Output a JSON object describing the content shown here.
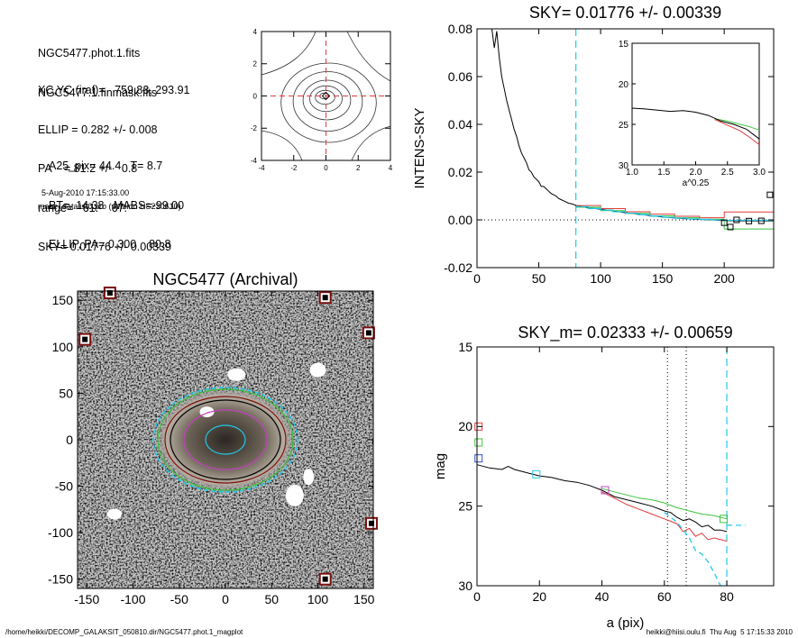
{
  "info": {
    "file_lines": [
      "NGC5477.phot.1.fits",
      "NGC5477.1.finmask.fits"
    ],
    "params": [
      "XC,YC (iraf)=   759.83, 293.91",
      "ELLIP = 0.282 +/- 0.008",
      "PA    = 81.2 +/-   0.8",
      "range=   61.-   67.",
      "SKY= 0.01776 +/- 0.00339"
    ],
    "morph": [
      "A25_pix= 44.4   T= 8.7",
      "BT=  14.38   MABS=-99.00",
      "ELLIP, PA= 0.300    80.8"
    ],
    "date": "5-Aug-2010 17:15:33.00",
    "program": "make_datalist0.pro (version HS230610)"
  },
  "footer": {
    "left": "/home/heikki/DECOMP_GALAKSIT_050810.dir/NGC5477.phot.1_magplot",
    "right": "heikki@hiisi.oulu.fi  Thu Aug  5 17:15:33 2010"
  },
  "colors": {
    "cyan": "#22c8e8",
    "red": "#e03a3a",
    "green": "#3cc43c",
    "magenta": "#c040c0",
    "blue": "#3050d0",
    "dark_red": "#7a0f0f"
  },
  "chart_data": [
    {
      "type": "contour",
      "title": "",
      "xticks": [
        "-4",
        "-2",
        "0",
        "2",
        "4"
      ],
      "yticks": [
        "-4",
        "-2",
        "0",
        "2",
        "4"
      ],
      "xlim": [
        -4,
        4
      ],
      "ylim": [
        -4,
        4
      ],
      "center_marker": [
        0,
        0
      ]
    },
    {
      "type": "line",
      "title": "SKY= 0.01776 +/- 0.00339",
      "xlabel": "",
      "ylabel": "INTENS-SKY",
      "xlim": [
        0,
        240
      ],
      "ylim": [
        -0.02,
        0.08
      ],
      "xticks": [
        "0",
        "50",
        "100",
        "150",
        "200"
      ],
      "yticks": [
        "-0.02",
        "0.00",
        "0.02",
        "0.04",
        "0.06",
        "0.08"
      ],
      "vline_x": 80,
      "profile": [
        [
          12,
          0.08
        ],
        [
          14,
          0.072
        ],
        [
          16,
          0.079
        ],
        [
          18,
          0.068
        ],
        [
          20,
          0.06
        ],
        [
          22,
          0.055
        ],
        [
          24,
          0.05
        ],
        [
          26,
          0.046
        ],
        [
          28,
          0.042
        ],
        [
          30,
          0.038
        ],
        [
          32,
          0.035
        ],
        [
          34,
          0.031
        ],
        [
          36,
          0.028
        ],
        [
          38,
          0.026
        ],
        [
          40,
          0.024
        ],
        [
          42,
          0.021
        ],
        [
          44,
          0.02
        ],
        [
          46,
          0.018
        ],
        [
          48,
          0.017
        ],
        [
          50,
          0.016
        ],
        [
          52,
          0.014
        ],
        [
          54,
          0.014
        ],
        [
          56,
          0.013
        ],
        [
          58,
          0.012
        ],
        [
          60,
          0.011
        ],
        [
          62,
          0.0105
        ],
        [
          64,
          0.01
        ],
        [
          66,
          0.009
        ],
        [
          68,
          0.0085
        ],
        [
          70,
          0.008
        ],
        [
          72,
          0.0075
        ],
        [
          74,
          0.007
        ],
        [
          76,
          0.0068
        ],
        [
          78,
          0.0065
        ],
        [
          80,
          0.006
        ],
        [
          85,
          0.0055
        ],
        [
          90,
          0.005
        ],
        [
          100,
          0.0045
        ],
        [
          110,
          0.0038
        ],
        [
          120,
          0.003
        ],
        [
          130,
          0.0025
        ],
        [
          140,
          0.0018
        ],
        [
          150,
          0.0012
        ],
        [
          160,
          0.0008
        ],
        [
          170,
          0.0004
        ],
        [
          180,
          0.0002
        ],
        [
          190,
          0.0
        ],
        [
          200,
          -0.0003
        ],
        [
          210,
          -0.0004
        ],
        [
          220,
          -0.0004
        ],
        [
          230,
          -0.0004
        ],
        [
          240,
          -0.0004
        ]
      ],
      "steps_cyan": [
        [
          80,
          0.0055
        ],
        [
          90,
          0.0048
        ],
        [
          100,
          0.0041
        ],
        [
          110,
          0.0034
        ],
        [
          120,
          0.0028
        ],
        [
          130,
          0.0022
        ],
        [
          140,
          0.0016
        ],
        [
          150,
          0.0011
        ],
        [
          160,
          0.0007
        ],
        [
          170,
          0.0004
        ],
        [
          180,
          0.0002
        ],
        [
          190,
          0.0
        ],
        [
          200,
          -0.0002
        ],
        [
          240,
          -0.0002
        ]
      ],
      "steps_red": [
        [
          80,
          0.006
        ],
        [
          100,
          0.0047
        ],
        [
          120,
          0.0034
        ],
        [
          140,
          0.0024
        ],
        [
          160,
          0.0015
        ],
        [
          180,
          0.0009
        ],
        [
          200,
          0.0033
        ],
        [
          240,
          0.0033
        ]
      ],
      "steps_green": [
        [
          80,
          0.0053
        ],
        [
          100,
          0.0039
        ],
        [
          120,
          0.0027
        ],
        [
          140,
          0.0017
        ],
        [
          160,
          0.0009
        ],
        [
          180,
          0.0003
        ],
        [
          200,
          -0.0038
        ],
        [
          240,
          -0.0038
        ]
      ],
      "squares": [
        [
          200,
          -0.0012
        ],
        [
          205,
          -0.003
        ],
        [
          210,
          0.0
        ],
        [
          220,
          -0.0005
        ],
        [
          230,
          -0.0004
        ],
        [
          237,
          0.0105
        ]
      ],
      "inset": {
        "xlabel": "a^0.25",
        "xlim": [
          1.0,
          3.0
        ],
        "ylim": [
          30,
          15
        ],
        "xticks": [
          "1.0",
          "1.5",
          "2.0",
          "2.5",
          "3.0"
        ],
        "yticks": [
          "15",
          "20",
          "25",
          "30"
        ],
        "black": [
          [
            1.0,
            23.0
          ],
          [
            1.2,
            23.1
          ],
          [
            1.4,
            23.25
          ],
          [
            1.6,
            23.4
          ],
          [
            1.8,
            23.3
          ],
          [
            2.0,
            23.5
          ],
          [
            2.2,
            23.9
          ],
          [
            2.4,
            24.6
          ],
          [
            2.6,
            25.0
          ],
          [
            2.8,
            25.6
          ],
          [
            2.9,
            26.2
          ],
          [
            3.0,
            26.8
          ]
        ],
        "green": [
          [
            2.3,
            24.3
          ],
          [
            2.5,
            24.6
          ],
          [
            2.7,
            25.0
          ],
          [
            2.85,
            25.3
          ],
          [
            3.0,
            25.7
          ]
        ],
        "red": [
          [
            2.3,
            24.4
          ],
          [
            2.5,
            25.1
          ],
          [
            2.7,
            25.8
          ],
          [
            2.85,
            26.6
          ],
          [
            3.0,
            27.5
          ]
        ]
      }
    },
    {
      "type": "image",
      "title": "NGC5477 (Archival)",
      "xlim": [
        -160,
        160
      ],
      "ylim": [
        -160,
        160
      ],
      "xticks": [
        "-150",
        "-100",
        "-50",
        "0",
        "50",
        "100",
        "150"
      ],
      "yticks": [
        "-150",
        "-100",
        "-50",
        "0",
        "50",
        "100",
        "150"
      ],
      "ellipses": [
        {
          "rx": 22,
          "ry": 16,
          "color": "cyan"
        },
        {
          "rx": 46,
          "ry": 33,
          "color": "magenta"
        },
        {
          "rx": 61,
          "ry": 44,
          "color": "black"
        },
        {
          "rx": 67,
          "ry": 48,
          "color": "dark_red"
        },
        {
          "rx": 80,
          "ry": 58,
          "color": "cyan"
        },
        {
          "rx": 75,
          "ry": 56,
          "color": "green"
        }
      ],
      "star_markers": [
        [
          -125,
          158
        ],
        [
          108,
          153
        ],
        [
          -152,
          108
        ],
        [
          155,
          115
        ],
        [
          158,
          -90
        ],
        [
          108,
          -150
        ]
      ]
    },
    {
      "type": "line",
      "title": "SKY_m=  0.02333 +/- 0.00659",
      "xlabel": "a (pix)",
      "ylabel": "mag",
      "xlim": [
        0,
        95
      ],
      "ylim": [
        30,
        15
      ],
      "xticks": [
        "0",
        "20",
        "40",
        "60",
        "80"
      ],
      "yticks": [
        "15",
        "20",
        "25",
        "30"
      ],
      "vlines_dotted": [
        61,
        67
      ],
      "vline_dashed": 80,
      "black": [
        [
          0,
          22.4
        ],
        [
          4,
          22.6
        ],
        [
          8,
          22.7
        ],
        [
          10,
          22.5
        ],
        [
          12,
          22.7
        ],
        [
          16,
          22.9
        ],
        [
          20,
          23.1
        ],
        [
          24,
          23.2
        ],
        [
          28,
          23.4
        ],
        [
          32,
          23.5
        ],
        [
          36,
          23.7
        ],
        [
          40,
          24.0
        ],
        [
          44,
          24.4
        ],
        [
          48,
          24.6
        ],
        [
          52,
          24.8
        ],
        [
          56,
          25.0
        ],
        [
          60,
          25.3
        ],
        [
          62,
          25.4
        ],
        [
          64,
          25.7
        ],
        [
          66,
          25.9
        ],
        [
          68,
          25.8
        ],
        [
          70,
          26.0
        ],
        [
          72,
          26.3
        ],
        [
          74,
          26.2
        ],
        [
          76,
          26.5
        ],
        [
          78,
          26.5
        ],
        [
          80,
          26.6
        ]
      ],
      "green": [
        [
          40,
          23.9
        ],
        [
          44,
          24.1
        ],
        [
          48,
          24.3
        ],
        [
          52,
          24.5
        ],
        [
          56,
          24.6
        ],
        [
          60,
          24.8
        ],
        [
          64,
          25.1
        ],
        [
          68,
          25.3
        ],
        [
          72,
          25.5
        ],
        [
          76,
          25.6
        ],
        [
          80,
          25.8
        ]
      ],
      "red": [
        [
          40,
          24.1
        ],
        [
          44,
          24.5
        ],
        [
          48,
          24.9
        ],
        [
          52,
          25.2
        ],
        [
          56,
          25.5
        ],
        [
          60,
          25.8
        ],
        [
          64,
          26.1
        ],
        [
          66,
          26.6
        ],
        [
          68,
          26.4
        ],
        [
          70,
          26.9
        ],
        [
          72,
          26.7
        ],
        [
          74,
          27.1
        ],
        [
          76,
          27.0
        ],
        [
          80,
          27.2
        ]
      ],
      "cyan_dashed": [
        [
          60,
          25.4
        ],
        [
          64,
          26.0
        ],
        [
          68,
          27.0
        ],
        [
          70,
          27.8
        ],
        [
          72,
          28.0
        ],
        [
          74,
          28.5
        ],
        [
          76,
          29.2
        ],
        [
          78,
          30.0
        ]
      ],
      "cyan_dashed_flat": [
        [
          80,
          26.2
        ],
        [
          86,
          26.2
        ]
      ],
      "squares": [
        {
          "x": 0.5,
          "y": 20.0,
          "color": "red"
        },
        {
          "x": 0.5,
          "y": 21.0,
          "color": "green"
        },
        {
          "x": 0.5,
          "y": 22.0,
          "color": "blue"
        },
        {
          "x": 19,
          "y": 23.0,
          "color": "cyan"
        },
        {
          "x": 41,
          "y": 24.0,
          "color": "magenta"
        },
        {
          "x": 79,
          "y": 25.8,
          "color": "green"
        }
      ]
    }
  ]
}
